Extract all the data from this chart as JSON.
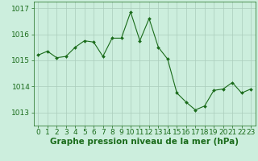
{
  "x": [
    0,
    1,
    2,
    3,
    4,
    5,
    6,
    7,
    8,
    9,
    10,
    11,
    12,
    13,
    14,
    15,
    16,
    17,
    18,
    19,
    20,
    21,
    22,
    23
  ],
  "y": [
    1015.2,
    1015.35,
    1015.1,
    1015.15,
    1015.5,
    1015.75,
    1015.7,
    1015.15,
    1015.85,
    1015.85,
    1016.85,
    1015.75,
    1016.6,
    1015.5,
    1015.05,
    1013.75,
    1013.4,
    1013.1,
    1013.25,
    1013.85,
    1013.9,
    1014.15,
    1013.75,
    1013.9
  ],
  "line_color": "#1a6b1a",
  "marker_color": "#1a6b1a",
  "bg_color": "#cceedd",
  "grid_color": "#aaccbb",
  "xlabel": "Graphe pression niveau de la mer (hPa)",
  "xlabel_color": "#1a6b1a",
  "tick_color": "#1a6b1a",
  "ylim": [
    1012.5,
    1017.25
  ],
  "yticks": [
    1013,
    1014,
    1015,
    1016,
    1017
  ],
  "xticks": [
    0,
    1,
    2,
    3,
    4,
    5,
    6,
    7,
    8,
    9,
    10,
    11,
    12,
    13,
    14,
    15,
    16,
    17,
    18,
    19,
    20,
    21,
    22,
    23
  ],
  "xlabel_fontsize": 7.5,
  "tick_fontsize": 6.5
}
